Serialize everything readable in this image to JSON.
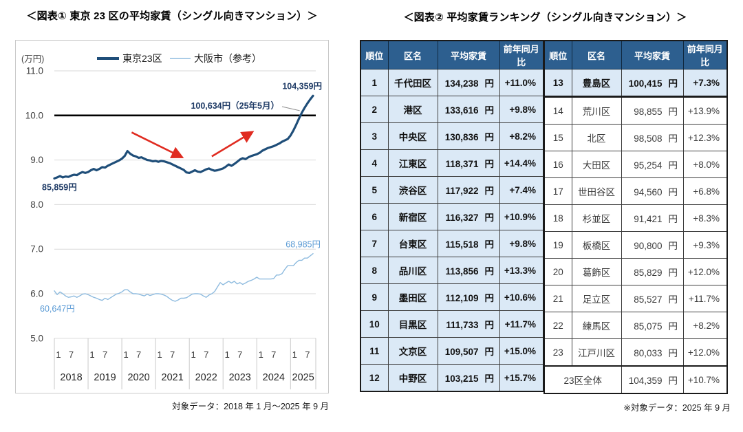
{
  "figure1": {
    "title": "＜図表① 東京 23 区の平均家賃（シングル向きマンション）＞",
    "footer": "対象データ：2018 年 1 月～2025 年 9 月"
  },
  "figure2": {
    "title": "＜図表② 平均家賃ランキング（シングル向きマンション）＞",
    "footer": "※対象データ：2025 年 9 月"
  },
  "chart_data": [
    {
      "type": "line",
      "title": "東京23区の平均家賃（シングル向きマンション）",
      "unit_label": "(万円)",
      "ylim": [
        5.0,
        11.0
      ],
      "yticks": [
        11.0,
        10.0,
        9.0,
        8.0,
        7.0,
        6.0,
        5.0
      ],
      "grid": true,
      "legend_position": "top",
      "x_start": "2018-01",
      "x_end": "2025-09",
      "x_interval": "monthly",
      "x_years": [
        "2018",
        "2019",
        "2020",
        "2021",
        "2022",
        "2023",
        "2024",
        "2025"
      ],
      "x_tick_labels": [
        "1",
        "7"
      ],
      "reference_line": {
        "y": 10.0,
        "color": "#000000"
      },
      "series": [
        {
          "name": "東京23区",
          "color": "#1f4e79",
          "stroke_width": 3.2,
          "values": [
            8.586,
            8.61,
            8.64,
            8.61,
            8.63,
            8.62,
            8.65,
            8.67,
            8.66,
            8.7,
            8.73,
            8.71,
            8.73,
            8.77,
            8.8,
            8.77,
            8.8,
            8.84,
            8.83,
            8.87,
            8.9,
            8.93,
            8.96,
            8.99,
            9.03,
            9.09,
            9.2,
            9.14,
            9.1,
            9.08,
            9.05,
            9.06,
            9.03,
            9.0,
            8.99,
            8.97,
            8.98,
            8.96,
            8.98,
            8.97,
            8.95,
            8.93,
            8.9,
            8.87,
            8.84,
            8.81,
            8.78,
            8.72,
            8.71,
            8.74,
            8.77,
            8.74,
            8.73,
            8.76,
            8.79,
            8.81,
            8.78,
            8.76,
            8.77,
            8.79,
            8.81,
            8.85,
            8.9,
            8.87,
            8.91,
            8.96,
            9.01,
            9.04,
            9.02,
            9.06,
            9.09,
            9.11,
            9.13,
            9.16,
            9.21,
            9.24,
            9.27,
            9.29,
            9.31,
            9.34,
            9.37,
            9.41,
            9.44,
            9.47,
            9.55,
            9.66,
            9.79,
            9.93,
            10.06,
            10.17,
            10.27,
            10.36,
            10.44
          ]
        },
        {
          "name": "大阪市（参考）",
          "color": "#8ebbdf",
          "stroke_width": 1.4,
          "values": [
            6.065,
            5.98,
            6.04,
            6.0,
            5.95,
            5.92,
            5.93,
            5.95,
            5.92,
            5.95,
            5.99,
            6.0,
            5.98,
            5.95,
            5.92,
            5.9,
            5.87,
            5.85,
            5.9,
            5.87,
            5.91,
            5.95,
            5.99,
            6.01,
            6.04,
            6.09,
            6.09,
            6.04,
            6.0,
            6.0,
            5.99,
            5.97,
            5.95,
            5.99,
            5.96,
            5.98,
            6.0,
            6.0,
            5.99,
            5.97,
            5.94,
            5.89,
            5.85,
            5.83,
            5.86,
            5.9,
            5.9,
            5.91,
            5.95,
            5.99,
            6.0,
            6.0,
            5.99,
            5.95,
            5.92,
            5.97,
            6.0,
            6.05,
            6.15,
            6.25,
            6.2,
            6.24,
            6.28,
            6.24,
            6.28,
            6.22,
            6.25,
            6.21,
            6.24,
            6.28,
            6.3,
            6.33,
            6.37,
            6.33,
            6.33,
            6.33,
            6.33,
            6.33,
            6.34,
            6.42,
            6.42,
            6.45,
            6.55,
            6.63,
            6.63,
            6.63,
            6.7,
            6.75,
            6.75,
            6.8,
            6.8,
            6.85,
            6.899
          ]
        }
      ],
      "annotations": [
        {
          "id": "tokyo-first",
          "text": "85,859円",
          "color": "#1f3b66"
        },
        {
          "id": "tokyo-last",
          "text": "104,359円",
          "color": "#1f3b66"
        },
        {
          "id": "tokyo-may-2025",
          "text": "100,634円（25年5月）",
          "color": "#1f3b66",
          "connector_color": "#8c8c8c",
          "month_index": 88
        },
        {
          "id": "osaka-first",
          "text": "60,647円",
          "color": "#5b9bd5"
        },
        {
          "id": "osaka-last",
          "text": "68,985円",
          "color": "#5b9bd5"
        }
      ],
      "trend_arrows": {
        "color": "#e02b20",
        "segments": [
          {
            "from": [
              27.5,
              9.62
            ],
            "to": [
              45.5,
              9.06
            ]
          },
          {
            "from": [
              56.0,
              9.08
            ],
            "to": [
              70.5,
              9.63
            ]
          }
        ]
      }
    },
    {
      "type": "table",
      "title": "平均家賃ランキング（シングル向きマンション）",
      "columns": [
        "順位",
        "区名",
        "平均家賃",
        "前年同月比"
      ],
      "unit": "円",
      "highlight_top": 13,
      "rows": [
        [
          "1",
          "千代田区",
          "134,238",
          "+11.0%"
        ],
        [
          "2",
          "港区",
          "133,616",
          "+9.8%"
        ],
        [
          "3",
          "中央区",
          "130,836",
          "+8.2%"
        ],
        [
          "4",
          "江東区",
          "118,371",
          "+14.4%"
        ],
        [
          "5",
          "渋谷区",
          "117,922",
          "+7.4%"
        ],
        [
          "6",
          "新宿区",
          "116,327",
          "+10.9%"
        ],
        [
          "7",
          "台東区",
          "115,518",
          "+9.8%"
        ],
        [
          "8",
          "品川区",
          "113,856",
          "+13.3%"
        ],
        [
          "9",
          "墨田区",
          "112,109",
          "+10.6%"
        ],
        [
          "10",
          "目黒区",
          "111,733",
          "+11.7%"
        ],
        [
          "11",
          "文京区",
          "109,507",
          "+15.0%"
        ],
        [
          "12",
          "中野区",
          "103,215",
          "+15.7%"
        ],
        [
          "13",
          "豊島区",
          "100,415",
          "+7.3%"
        ],
        [
          "14",
          "荒川区",
          "98,855",
          "+13.9%"
        ],
        [
          "15",
          "北区",
          "98,508",
          "+12.3%"
        ],
        [
          "16",
          "大田区",
          "95,254",
          "+8.0%"
        ],
        [
          "17",
          "世田谷区",
          "94,560",
          "+6.8%"
        ],
        [
          "18",
          "杉並区",
          "91,421",
          "+8.3%"
        ],
        [
          "19",
          "板橋区",
          "90,800",
          "+9.3%"
        ],
        [
          "20",
          "葛飾区",
          "85,829",
          "+12.0%"
        ],
        [
          "21",
          "足立区",
          "85,527",
          "+11.7%"
        ],
        [
          "22",
          "練馬区",
          "85,075",
          "+8.2%"
        ],
        [
          "23",
          "江戸川区",
          "80,033",
          "+12.0%"
        ]
      ],
      "total_row": [
        "23区全体",
        "104,359",
        "+10.7%"
      ]
    }
  ]
}
